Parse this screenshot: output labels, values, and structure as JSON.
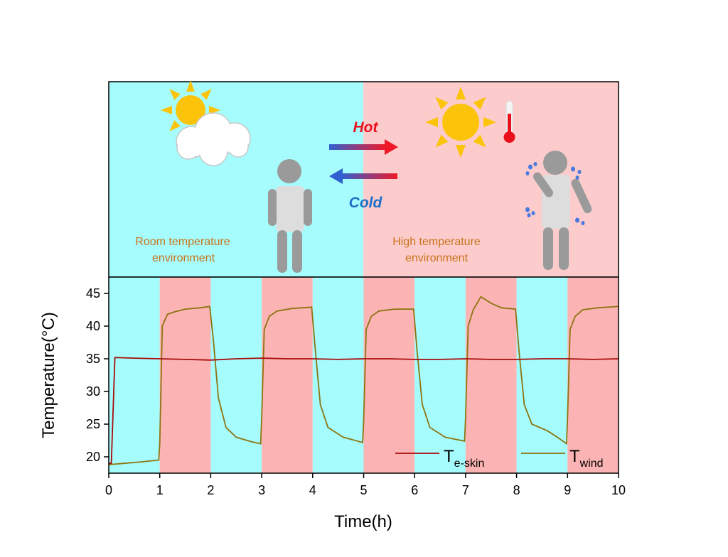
{
  "top": {
    "hot_label": "Hot",
    "cold_label": "Cold",
    "room_line1": "Room  temperature",
    "room_line2": "environment",
    "high_line1": "High  temperature",
    "high_line2": "environment"
  },
  "colors": {
    "room_bg": "#a6fcfc",
    "high_bg": "#fccbcb",
    "plot_room": "#a6fcfc",
    "plot_high": "#fcb3b3",
    "skin_line": "#a80c0c",
    "wind_line": "#8c7410",
    "hot_text": "#e8101c",
    "cold_text": "#1e6fc8",
    "env_text": "#c8741c",
    "sun": "#fbc40a",
    "person": "#9a9a9a",
    "sweat": "#4a7ae0"
  },
  "chart_data": {
    "type": "line",
    "xlabel": "Time(h)",
    "ylabel": "Temperature(°C)",
    "xlim": [
      0,
      10
    ],
    "ylim": [
      17.5,
      47.5
    ],
    "x_ticks": [
      0,
      1,
      2,
      3,
      4,
      5,
      6,
      7,
      8,
      9,
      10
    ],
    "y_ticks": [
      20,
      25,
      30,
      35,
      40,
      45
    ],
    "background_bands": [
      {
        "from": 0,
        "to": 1,
        "env": "room"
      },
      {
        "from": 1,
        "to": 2,
        "env": "high"
      },
      {
        "from": 2,
        "to": 3,
        "env": "room"
      },
      {
        "from": 3,
        "to": 4,
        "env": "high"
      },
      {
        "from": 4,
        "to": 5,
        "env": "room"
      },
      {
        "from": 5,
        "to": 6,
        "env": "high"
      },
      {
        "from": 6,
        "to": 7,
        "env": "room"
      },
      {
        "from": 7,
        "to": 8,
        "env": "high"
      },
      {
        "from": 8,
        "to": 9,
        "env": "room"
      },
      {
        "from": 9,
        "to": 10,
        "env": "high"
      }
    ],
    "legend_placement": "bottom-right",
    "legend": [
      {
        "main": "T",
        "sub": "e-skin",
        "series": "skin"
      },
      {
        "main": "T",
        "sub": "wind",
        "series": "wind"
      }
    ],
    "series": [
      {
        "key": "skin",
        "x": [
          0,
          0.05,
          0.12,
          0.5,
          1.0,
          1.5,
          2.0,
          2.5,
          3.0,
          3.5,
          4.0,
          4.5,
          5.0,
          5.5,
          6.0,
          6.5,
          7.0,
          7.5,
          8.0,
          8.5,
          9.0,
          9.5,
          10.0
        ],
        "y": [
          19.0,
          19.0,
          35.2,
          35.1,
          35.0,
          34.9,
          34.8,
          35.0,
          35.1,
          35.0,
          35.0,
          34.9,
          35.0,
          35.0,
          34.9,
          34.9,
          35.0,
          34.9,
          34.9,
          35.0,
          35.0,
          34.9,
          35.0
        ]
      },
      {
        "key": "wind",
        "x": [
          0,
          0.3,
          0.6,
          0.98,
          1.0,
          1.05,
          1.15,
          1.3,
          1.5,
          1.8,
          1.98,
          2.05,
          2.15,
          2.3,
          2.5,
          2.8,
          2.98,
          3.0,
          3.05,
          3.15,
          3.3,
          3.6,
          3.98,
          4.05,
          4.15,
          4.3,
          4.6,
          4.98,
          5.0,
          5.05,
          5.15,
          5.3,
          5.6,
          5.98,
          6.05,
          6.15,
          6.3,
          6.6,
          6.98,
          7.0,
          7.05,
          7.15,
          7.3,
          7.5,
          7.7,
          7.98,
          8.05,
          8.15,
          8.3,
          8.6,
          8.8,
          8.98,
          9.0,
          9.05,
          9.15,
          9.3,
          9.6,
          10.0
        ],
        "y": [
          18.8,
          19.0,
          19.2,
          19.5,
          22.0,
          40.0,
          41.8,
          42.2,
          42.6,
          42.8,
          43.0,
          38.0,
          29.0,
          24.5,
          23.0,
          22.3,
          22.0,
          26.0,
          39.5,
          41.5,
          42.3,
          42.7,
          42.9,
          36.5,
          28.0,
          24.5,
          23.0,
          22.2,
          25.5,
          39.5,
          41.5,
          42.3,
          42.6,
          42.6,
          36.0,
          28.0,
          24.5,
          23.0,
          22.4,
          26.0,
          40.0,
          42.5,
          44.5,
          43.5,
          42.8,
          42.6,
          36.0,
          28.0,
          25.0,
          24.0,
          23.0,
          22.0,
          26.0,
          39.5,
          41.5,
          42.5,
          42.8,
          43.0
        ]
      }
    ]
  }
}
